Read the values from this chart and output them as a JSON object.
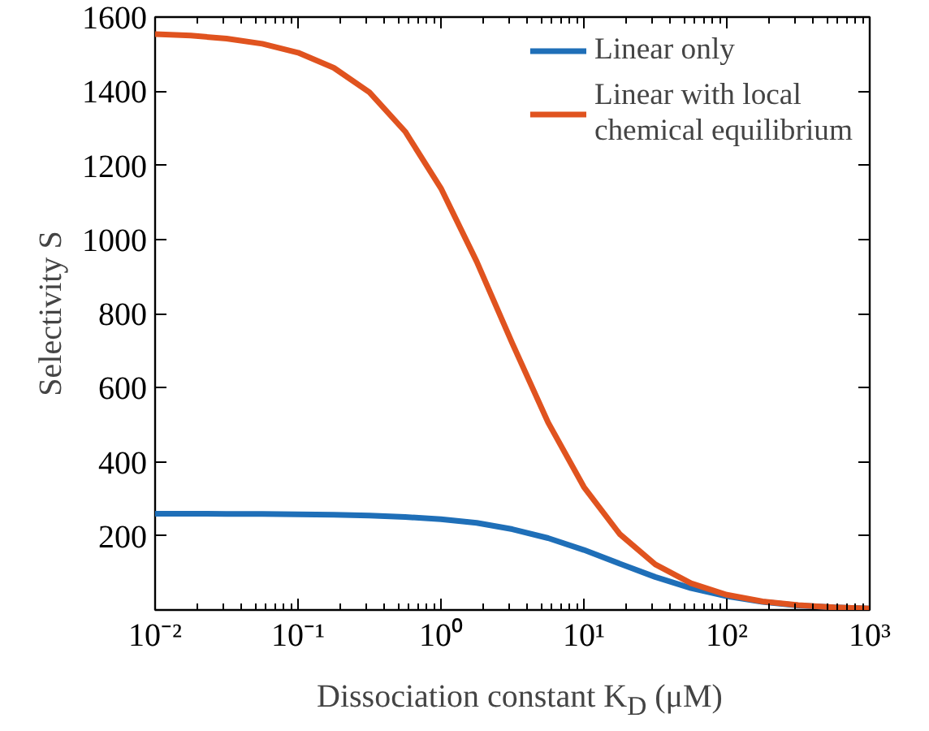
{
  "chart_data": {
    "type": "line",
    "xlabel": "Dissociation constant K$_{D}$ (μM)",
    "ylabel": "Selectivity S",
    "log": "x",
    "grid": false,
    "legend": "top right",
    "xlim": [
      0.01,
      1000
    ],
    "ylim": [
      0,
      1600
    ],
    "xticks": [
      {
        "value": 0.01,
        "label": "10⁻²"
      },
      {
        "value": 0.1,
        "label": "10⁻¹"
      },
      {
        "value": 1,
        "label": "10⁰"
      },
      {
        "value": 10,
        "label": "10¹"
      },
      {
        "value": 100,
        "label": "10²"
      },
      {
        "value": 1000,
        "label": "10³"
      }
    ],
    "yticks": [
      200,
      400,
      600,
      800,
      1000,
      1200,
      1400,
      1600
    ],
    "x": [
      0.01,
      0.0178,
      0.0316,
      0.0562,
      0.1,
      0.178,
      0.316,
      0.562,
      1,
      1.78,
      3.16,
      5.62,
      10,
      17.8,
      31.6,
      56.2,
      100,
      178,
      316,
      562,
      1000
    ],
    "series": [
      {
        "name": "Linear only",
        "color": "#1f6fb8",
        "values": [
          260,
          260,
          259,
          259,
          258,
          257,
          255,
          251,
          245,
          235,
          218,
          194,
          162,
          125,
          89,
          59,
          37,
          22,
          12,
          7,
          4
        ]
      },
      {
        "name": "Linear with local chemical equilibrium",
        "color": "#e0531f",
        "values": [
          1554,
          1550,
          1542,
          1528,
          1504,
          1463,
          1397,
          1291,
          1138,
          940,
          719,
          506,
          332,
          205,
          123,
          72,
          41,
          23,
          13,
          7,
          4
        ]
      }
    ]
  }
}
